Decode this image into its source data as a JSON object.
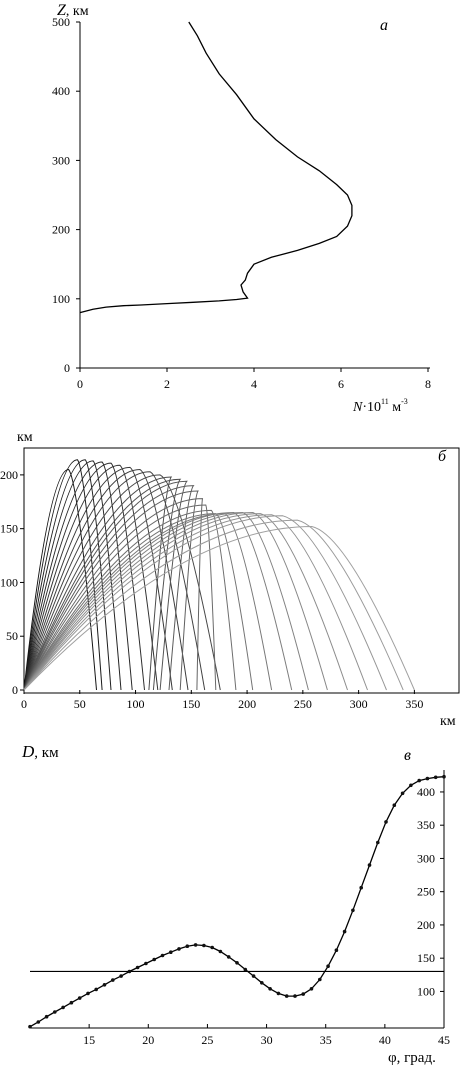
{
  "chart_data": [
    {
      "panel": "a",
      "type": "line",
      "panel_label": "а",
      "ylabel_var": "Z",
      "ylabel_unit": ", км",
      "xlabel_var": "N",
      "xlabel_mid": "·10",
      "xlabel_exp": "11",
      "xlabel_unit": " м",
      "xlabel_unit_exp": "-3",
      "xlim": [
        0,
        8
      ],
      "ylim": [
        0,
        500
      ],
      "xticks": [
        0,
        2,
        4,
        6,
        8
      ],
      "yticks": [
        0,
        100,
        200,
        300,
        400,
        500
      ],
      "series": [
        {
          "x": [
            0,
            0.3,
            0.6,
            1.0,
            1.4,
            2.0,
            2.6,
            3.2,
            3.6,
            3.85,
            3.75,
            3.7,
            3.8,
            3.85,
            4.0,
            4.4,
            5.0,
            5.5,
            5.9,
            6.15,
            6.25,
            6.25,
            6.15,
            5.9,
            5.5,
            5.0,
            4.5,
            4.0,
            3.6,
            3.2,
            2.9,
            2.7,
            2.5
          ],
          "y": [
            80,
            85,
            88,
            90,
            91,
            93,
            95,
            97,
            99,
            101,
            110,
            120,
            127,
            137,
            150,
            160,
            170,
            180,
            190,
            205,
            220,
            235,
            250,
            265,
            285,
            305,
            330,
            360,
            395,
            425,
            455,
            480,
            500
          ]
        }
      ]
    },
    {
      "panel": "b",
      "type": "line",
      "panel_label": "б",
      "ylabel": "км",
      "xlabel": "км",
      "xlim": [
        0,
        390
      ],
      "ylim": [
        0,
        225
      ],
      "xticks": [
        0,
        50,
        100,
        150,
        200,
        250,
        300,
        350
      ],
      "yticks": [
        0,
        50,
        100,
        150,
        200
      ],
      "rays_note": "ray trajectories; each ray given by peak point [x_peak, h_peak] and ground range end [x_end]",
      "rays": [
        {
          "peak": [
            40,
            205
          ],
          "end": 65
        },
        {
          "peak": [
            48,
            214
          ],
          "end": 70
        },
        {
          "peak": [
            55,
            214
          ],
          "end": 78
        },
        {
          "peak": [
            62,
            213
          ],
          "end": 87
        },
        {
          "peak": [
            70,
            212
          ],
          "end": 97
        },
        {
          "peak": [
            78,
            211
          ],
          "end": 108
        },
        {
          "peak": [
            86,
            209
          ],
          "end": 120
        },
        {
          "peak": [
            95,
            207
          ],
          "end": 133
        },
        {
          "peak": [
            104,
            205
          ],
          "end": 147
        },
        {
          "peak": [
            113,
            203
          ],
          "end": 162
        },
        {
          "peak": [
            122,
            200
          ],
          "end": 176
        },
        {
          "peak": [
            132,
            198
          ],
          "end": 112
        },
        {
          "peak": [
            140,
            196
          ],
          "end": 116
        },
        {
          "peak": [
            146,
            194
          ],
          "end": 122
        },
        {
          "peak": [
            152,
            190
          ],
          "end": 130
        },
        {
          "peak": [
            156,
            185
          ],
          "end": 140
        },
        {
          "peak": [
            160,
            178
          ],
          "end": 155
        },
        {
          "peak": [
            163,
            172
          ],
          "end": 172
        },
        {
          "peak": [
            168,
            167
          ],
          "end": 190
        },
        {
          "peak": [
            172,
            164
          ],
          "end": 205
        },
        {
          "peak": [
            180,
            164
          ],
          "end": 222
        },
        {
          "peak": [
            188,
            165
          ],
          "end": 240
        },
        {
          "peak": [
            196,
            165
          ],
          "end": 255
        },
        {
          "peak": [
            205,
            165
          ],
          "end": 272
        },
        {
          "peak": [
            212,
            164
          ],
          "end": 290
        },
        {
          "peak": [
            222,
            163
          ],
          "end": 308
        },
        {
          "peak": [
            232,
            162
          ],
          "end": 325
        },
        {
          "peak": [
            245,
            158
          ],
          "end": 340
        },
        {
          "peak": [
            258,
            152
          ],
          "end": 350
        }
      ]
    },
    {
      "panel": "c",
      "type": "line",
      "panel_label": "в",
      "ylabel_var": "D",
      "ylabel_unit": ", км",
      "xlabel": "φ, град.",
      "xlim": [
        10,
        45
      ],
      "ylim": [
        45,
        430
      ],
      "xticks": [
        15,
        20,
        25,
        30,
        35,
        40,
        45
      ],
      "yticks": [
        100,
        150,
        200,
        250,
        300,
        350,
        400
      ],
      "hline": 130,
      "series": [
        {
          "x": [
            10,
            10.7,
            11.4,
            12.1,
            12.8,
            13.5,
            14.2,
            14.9,
            15.6,
            16.3,
            17.0,
            17.7,
            18.4,
            19.1,
            19.8,
            20.5,
            21.2,
            21.9,
            22.6,
            23.3,
            24.0,
            24.7,
            25.4,
            26.1,
            26.8,
            27.5,
            28.2,
            28.9,
            29.6,
            30.3,
            31.0,
            31.7,
            32.4,
            33.1,
            33.8,
            34.5,
            35.2,
            35.9,
            36.6,
            37.3,
            38.0,
            38.7,
            39.4,
            40.1,
            40.8,
            41.5,
            42.2,
            42.9,
            43.6,
            44.3,
            45.0
          ],
          "y": [
            47,
            54,
            62,
            69,
            76,
            83,
            90,
            97,
            103,
            110,
            117,
            123,
            130,
            136,
            142,
            148,
            154,
            159,
            164,
            168,
            170,
            169,
            166,
            160,
            152,
            143,
            133,
            123,
            113,
            104,
            97,
            93,
            93,
            96,
            104,
            118,
            138,
            162,
            190,
            222,
            256,
            290,
            324,
            355,
            380,
            398,
            410,
            417,
            420,
            422,
            423
          ]
        }
      ]
    }
  ]
}
